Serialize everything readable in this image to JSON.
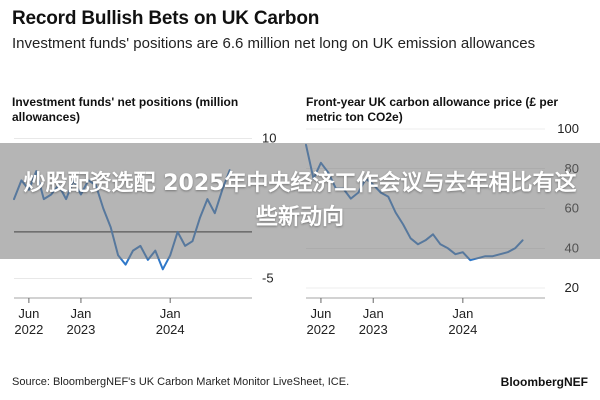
{
  "header": {
    "title": "Record Bullish Bets on UK Carbon",
    "subtitle": "Investment funds' positions are 6.6 million net long on UK emission allowances"
  },
  "overlay": {
    "text": "炒股配资选配 2025年中央经济工作会议与去年相比有这些新动向"
  },
  "footer": {
    "source": "Source: BloombergNEF's UK Carbon Market Monitor LiveSheet, ICE.",
    "brand": "BloombergNEF"
  },
  "colors": {
    "line": "#2f78c9",
    "zero_line": "#333333",
    "grid": "#d9d9d9"
  },
  "chart_data": [
    {
      "type": "line",
      "title": "Investment funds' net positions (million allowances)",
      "x_ticks": [
        {
          "date": "2022-06",
          "label": "Jun\n2022"
        },
        {
          "date": "2023-01",
          "label": "Jan\n2023"
        },
        {
          "date": "2024-01",
          "label": "Jan\n2024"
        }
      ],
      "xlim": [
        "2022-04",
        "2024-12"
      ],
      "ylim": [
        -6,
        11
      ],
      "y_ticks": [
        10,
        -5
      ],
      "zero_line": true,
      "series": [
        {
          "x": [
            "2022-04",
            "2022-05",
            "2022-06",
            "2022-07",
            "2022-08",
            "2022-09",
            "2022-10",
            "2022-11",
            "2022-12",
            "2023-01",
            "2023-02",
            "2023-03",
            "2023-04",
            "2023-05",
            "2023-06",
            "2023-07",
            "2023-08",
            "2023-09",
            "2023-10",
            "2023-11",
            "2023-12",
            "2024-01",
            "2024-02",
            "2024-03",
            "2024-04",
            "2024-05",
            "2024-06",
            "2024-07",
            "2024-08",
            "2024-09"
          ],
          "y": [
            3.5,
            5.5,
            4.5,
            6.5,
            3.5,
            4.0,
            5.0,
            3.5,
            5.5,
            4.0,
            5.5,
            5.0,
            2.5,
            0.5,
            -2.5,
            -3.5,
            -2.0,
            -1.5,
            -3.0,
            -2.0,
            -4.0,
            -2.5,
            0.0,
            -1.5,
            -1.0,
            1.5,
            3.5,
            2.0,
            4.5,
            6.6
          ]
        }
      ]
    },
    {
      "type": "line",
      "title": "Front-year UK carbon allowance price (£ per metric ton CO2e)",
      "x_ticks": [
        {
          "date": "2022-06",
          "label": "Jun\n2022"
        },
        {
          "date": "2023-01",
          "label": "Jan\n2023"
        },
        {
          "date": "2024-01",
          "label": "Jan\n2024"
        }
      ],
      "xlim": [
        "2022-04",
        "2024-12"
      ],
      "ylim": [
        20,
        100
      ],
      "y_ticks": [
        100,
        80,
        60,
        40,
        20
      ],
      "series": [
        {
          "x": [
            "2022-04",
            "2022-05",
            "2022-06",
            "2022-07",
            "2022-08",
            "2022-09",
            "2022-10",
            "2022-11",
            "2022-12",
            "2023-01",
            "2023-02",
            "2023-03",
            "2023-04",
            "2023-05",
            "2023-06",
            "2023-07",
            "2023-08",
            "2023-09",
            "2023-10",
            "2023-11",
            "2023-12",
            "2024-01",
            "2024-02",
            "2024-03",
            "2024-04",
            "2024-05",
            "2024-06",
            "2024-07",
            "2024-08",
            "2024-09"
          ],
          "y": [
            92,
            75,
            83,
            78,
            70,
            70,
            65,
            68,
            75,
            72,
            68,
            66,
            58,
            52,
            45,
            42,
            44,
            47,
            42,
            40,
            37,
            38,
            34,
            35,
            36,
            36,
            37,
            38,
            40,
            44
          ]
        }
      ]
    }
  ]
}
